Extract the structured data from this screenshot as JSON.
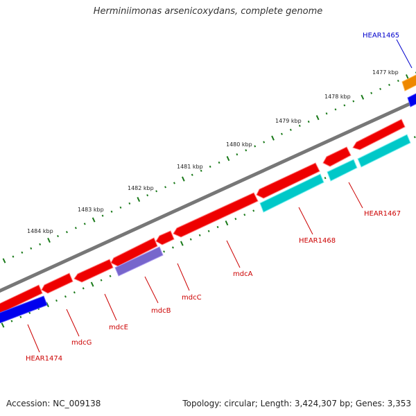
{
  "title": "Herminiimonas arsenicoxydans, complete genome",
  "footer": {
    "accession": "Accession: NC_009138",
    "summary": "Topology: circular; Length: 3,424,307 bp; Genes: 3,353"
  },
  "scale_labels": [
    "1477 kbp",
    "1478 kbp",
    "1479 kbp",
    "1480 kbp",
    "1481 kbp",
    "1482 kbp",
    "1483 kbp",
    "1484 kbp"
  ],
  "gene_labels": [
    {
      "text": "HEAR1465",
      "color": "#0000cc"
    },
    {
      "text": "HEAR1467",
      "color": "#cc0000"
    },
    {
      "text": "HEAR1468",
      "color": "#cc0000"
    },
    {
      "text": "mdcA",
      "color": "#cc0000"
    },
    {
      "text": "mdcC",
      "color": "#cc0000"
    },
    {
      "text": "mdcB",
      "color": "#cc0000"
    },
    {
      "text": "mdcE",
      "color": "#cc0000"
    },
    {
      "text": "mdcG",
      "color": "#cc0000"
    },
    {
      "text": "HEAR1474",
      "color": "#cc0000"
    }
  ],
  "colors": {
    "backbone": "#777777",
    "ticks": "#1a7a1a",
    "cds_forward": "#ee0000",
    "cds_reverse": "#00c8c8",
    "reverse_blue": "#0000ee",
    "reverse_purple": "#7766cc",
    "reverse_orange": "#ee8800"
  }
}
